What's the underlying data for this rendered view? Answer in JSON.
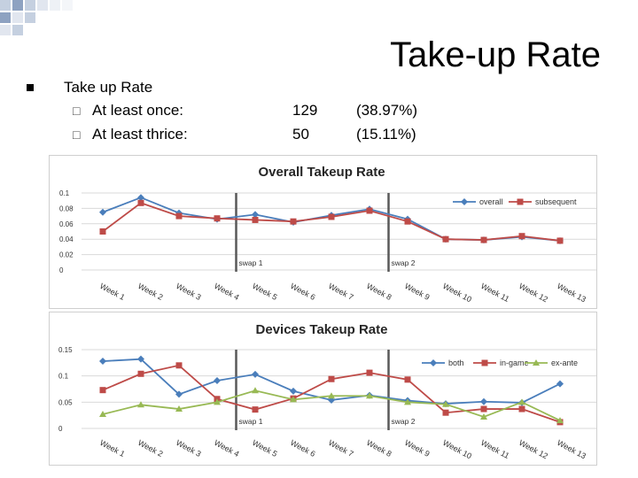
{
  "slide": {
    "title": "Take-up Rate",
    "bullet": "Take up Rate",
    "sub_items": [
      {
        "label": "At least once:",
        "count": "129",
        "percent": "(38.97%)"
      },
      {
        "label": "At least thrice:",
        "count": "50",
        "percent": "(15.11%)"
      }
    ]
  },
  "colors": {
    "blue": "#4a7ebb",
    "red": "#be4b48",
    "green": "#98b954",
    "swap_line": "#595959"
  },
  "chart_data": [
    {
      "type": "line",
      "title": "Overall Takeup Rate",
      "categories": [
        "Week 1",
        "Week 2",
        "Week 3",
        "Week 4",
        "Week 5",
        "Week 6",
        "Week 7",
        "Week 8",
        "Week 9",
        "Week 10",
        "Week 11",
        "Week 12",
        "Week 13"
      ],
      "y_ticks": [
        "0.1",
        "0.08",
        "0.06",
        "0.04",
        "0.02",
        "0"
      ],
      "ylim": [
        0,
        0.1
      ],
      "series": [
        {
          "name": "overall",
          "color": "#4a7ebb",
          "marker": "diamond",
          "values": [
            0.075,
            0.094,
            0.074,
            0.066,
            0.072,
            0.062,
            0.071,
            0.079,
            0.066,
            0.04,
            0.039,
            0.043,
            0.038
          ]
        },
        {
          "name": "subsequent",
          "color": "#be4b48",
          "marker": "square",
          "values": [
            0.05,
            0.087,
            0.07,
            0.067,
            0.065,
            0.063,
            0.069,
            0.077,
            0.063,
            0.04,
            0.039,
            0.044,
            0.038
          ]
        }
      ],
      "annotations": [
        {
          "label": "swap 1",
          "after_week": "Week 4"
        },
        {
          "label": "swap 2",
          "after_week": "Week 8"
        }
      ],
      "legend": "top-right"
    },
    {
      "type": "line",
      "title": "Devices Takeup Rate",
      "categories": [
        "Week 1",
        "Week 2",
        "Week 3",
        "Week 4",
        "Week 5",
        "Week 6",
        "Week 7",
        "Week 8",
        "Week 9",
        "Week 10",
        "Week 11",
        "Week 12",
        "Week 13"
      ],
      "y_ticks": [
        "0.15",
        "0.1",
        "0.05",
        "0"
      ],
      "ylim": [
        0,
        0.15
      ],
      "series": [
        {
          "name": "both",
          "color": "#4a7ebb",
          "marker": "diamond",
          "values": [
            0.128,
            0.132,
            0.065,
            0.091,
            0.103,
            0.071,
            0.054,
            0.063,
            0.053,
            0.047,
            0.051,
            0.049,
            0.085
          ]
        },
        {
          "name": "in-game",
          "color": "#be4b48",
          "marker": "square",
          "values": [
            0.073,
            0.104,
            0.12,
            0.056,
            0.036,
            0.057,
            0.094,
            0.106,
            0.093,
            0.03,
            0.037,
            0.037,
            0.012
          ]
        },
        {
          "name": "ex-ante",
          "color": "#98b954",
          "marker": "triangle",
          "values": [
            0.027,
            0.045,
            0.037,
            0.05,
            0.072,
            0.055,
            0.062,
            0.062,
            0.05,
            0.046,
            0.022,
            0.05,
            0.015
          ]
        }
      ],
      "annotations": [
        {
          "label": "swap 1",
          "after_week": "Week 4"
        },
        {
          "label": "swap 2",
          "after_week": "Week 8"
        }
      ],
      "legend": "top-right"
    }
  ]
}
